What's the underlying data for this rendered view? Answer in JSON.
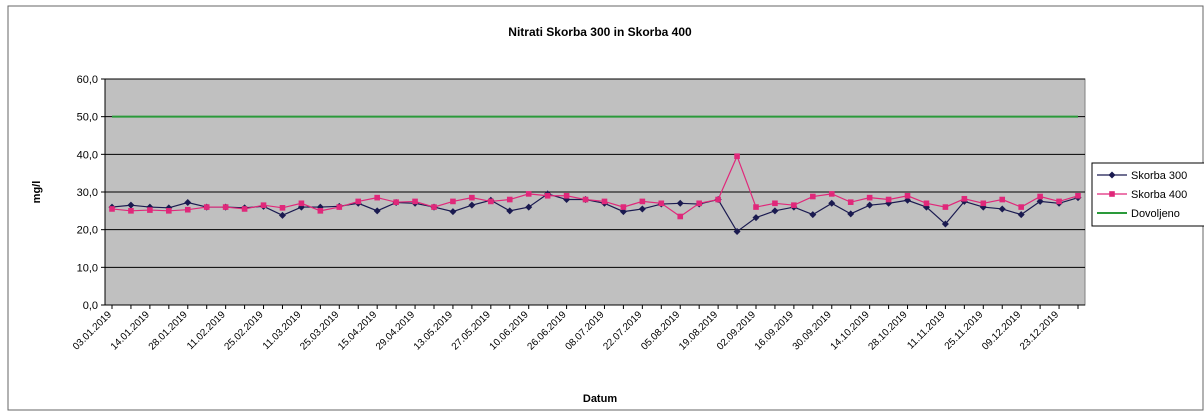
{
  "chart_data": {
    "type": "line",
    "title": "Nitrati Skorba 300 in Skorba 400",
    "x_label": "Datum",
    "y_label": "mg/l",
    "categories": [
      "03.01.2019",
      null,
      "14.01.2019",
      null,
      "28.01.2019",
      null,
      "11.02.2019",
      null,
      "25.02.2019",
      null,
      "11.03.2019",
      null,
      "25.03.2019",
      null,
      "15.04.2019",
      null,
      "29.04.2019",
      null,
      "13.05.2019",
      null,
      "27.05.2019",
      null,
      "10.06.2019",
      null,
      "26.06.2019",
      null,
      "08.07.2019",
      null,
      "22.07.2019",
      null,
      "05.08.2019",
      null,
      "19.08.2019",
      null,
      "02.09.2019",
      null,
      "16.09.2019",
      null,
      "30.09.2019",
      null,
      "14.10.2019",
      null,
      "28.10.2019",
      null,
      "11.11.2019",
      null,
      "25.11.2019",
      null,
      "09.12.2019",
      null,
      "23.12.2019",
      null
    ],
    "series": [
      {
        "name": "Skorba 300",
        "color": "#1a1a50",
        "marker": "diamond",
        "values": [
          26,
          26.5,
          26,
          25.8,
          27.2,
          26,
          26,
          25.8,
          26.2,
          23.8,
          26,
          26,
          26.2,
          27,
          25,
          27.2,
          27,
          26,
          24.8,
          26.5,
          27.8,
          25,
          26,
          29.5,
          28,
          28,
          27,
          24.8,
          25.5,
          26.8,
          27,
          26.8,
          28,
          19.5,
          23.2,
          25,
          26,
          24,
          27,
          24.2,
          26.5,
          27,
          27.8,
          26,
          21.5,
          27.5,
          26,
          25.5,
          24,
          27.5,
          27,
          28.5
        ]
      },
      {
        "name": "Skorba 400",
        "color": "#e0287a",
        "marker": "square",
        "values": [
          25.5,
          25,
          25.2,
          25,
          25.3,
          26,
          26,
          25.5,
          26.5,
          25.8,
          27,
          25,
          26,
          27.5,
          28.5,
          27.3,
          27.5,
          26,
          27.5,
          28.5,
          27.5,
          28,
          29.5,
          29,
          29,
          28,
          27.5,
          26,
          27.5,
          27,
          23.5,
          27,
          28,
          39.5,
          26,
          27,
          26.5,
          28.8,
          29.5,
          27.3,
          28.5,
          28,
          29,
          27,
          26,
          28.2,
          27,
          28,
          26,
          28.8,
          27.5,
          29
        ]
      },
      {
        "name": "Dovoljeno",
        "color": "#2a9a3a",
        "marker": "none",
        "values": [
          50,
          50,
          50,
          50,
          50,
          50,
          50,
          50,
          50,
          50,
          50,
          50,
          50,
          50,
          50,
          50,
          50,
          50,
          50,
          50,
          50,
          50,
          50,
          50,
          50,
          50,
          50,
          50,
          50,
          50,
          50,
          50,
          50,
          50,
          50,
          50,
          50,
          50,
          50,
          50,
          50,
          50,
          50,
          50,
          50,
          50,
          50,
          50,
          50,
          50,
          50,
          50
        ]
      }
    ],
    "ylim": [
      0,
      60
    ],
    "yticks": [
      {
        "value": 0,
        "label": "0,0"
      },
      {
        "value": 10,
        "label": "10,0"
      },
      {
        "value": 20,
        "label": "20,0"
      },
      {
        "value": 30,
        "label": "30,0"
      },
      {
        "value": 40,
        "label": "40,0"
      },
      {
        "value": 50,
        "label": "50,0"
      },
      {
        "value": 60,
        "label": "60,0"
      }
    ],
    "grid": true,
    "legend": "right"
  }
}
